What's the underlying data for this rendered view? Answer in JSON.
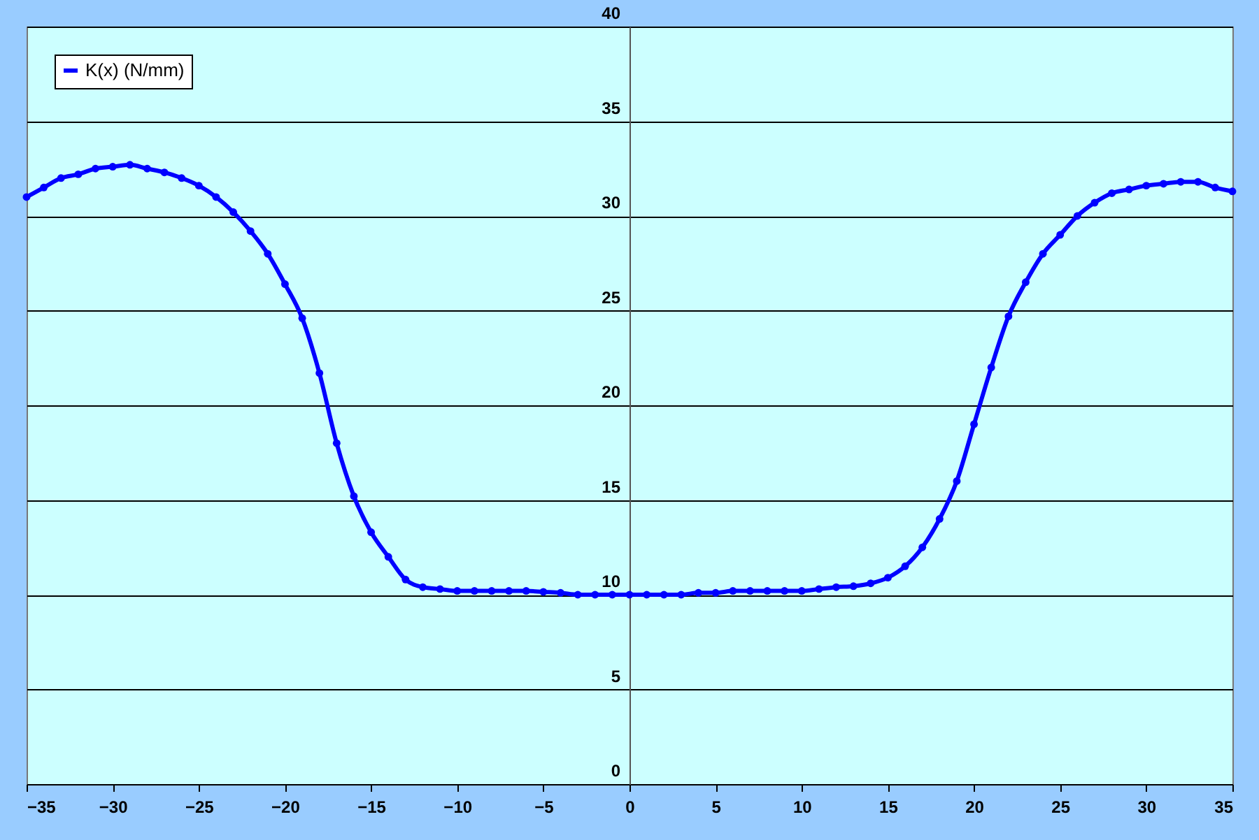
{
  "chart_data": {
    "type": "line",
    "x": [
      -35,
      -34,
      -33,
      -32,
      -31,
      -30,
      -29,
      -28,
      -27,
      -26,
      -25,
      -24,
      -23,
      -22,
      -21,
      -20,
      -19,
      -18,
      -17,
      -16,
      -15,
      -14,
      -13,
      -12,
      -11,
      -10,
      -9,
      -8,
      -7,
      -6,
      -5,
      -4,
      -3,
      -2,
      -1,
      0,
      1,
      2,
      3,
      4,
      5,
      6,
      7,
      8,
      9,
      10,
      11,
      12,
      13,
      14,
      15,
      16,
      17,
      18,
      19,
      20,
      21,
      22,
      23,
      24,
      25,
      26,
      27,
      28,
      29,
      30,
      31,
      32,
      33,
      34,
      35
    ],
    "series": [
      {
        "name": "K(x) (N/mm)",
        "color": "#0000ff",
        "values": [
          31.0,
          31.5,
          32.0,
          32.2,
          32.5,
          32.6,
          32.7,
          32.5,
          32.3,
          32.0,
          31.6,
          31.0,
          30.2,
          29.2,
          28.0,
          26.4,
          24.6,
          21.7,
          18.0,
          15.2,
          13.3,
          12.0,
          10.8,
          10.4,
          10.3,
          10.2,
          10.2,
          10.2,
          10.2,
          10.2,
          10.15,
          10.1,
          10.0,
          10.0,
          10.0,
          10.0,
          10.0,
          10.0,
          10.0,
          10.1,
          10.1,
          10.2,
          10.2,
          10.2,
          10.2,
          10.2,
          10.3,
          10.4,
          10.45,
          10.6,
          10.9,
          11.5,
          12.5,
          14.0,
          16.0,
          19.0,
          22.0,
          24.7,
          26.5,
          28.0,
          29.0,
          30.0,
          30.7,
          31.2,
          31.4,
          31.6,
          31.7,
          31.8,
          31.8,
          31.5,
          31.3
        ]
      }
    ],
    "xlim": [
      -35,
      35
    ],
    "xticks": [
      -35,
      -30,
      -25,
      -20,
      -15,
      -10,
      -5,
      0,
      5,
      10,
      15,
      20,
      25,
      30,
      35
    ],
    "ylim": [
      0,
      40
    ],
    "yticks": [
      0,
      5,
      10,
      15,
      20,
      25,
      30,
      35,
      40
    ],
    "grid": "y",
    "legend": "top left",
    "marker": "circle",
    "line_style": "solid"
  }
}
